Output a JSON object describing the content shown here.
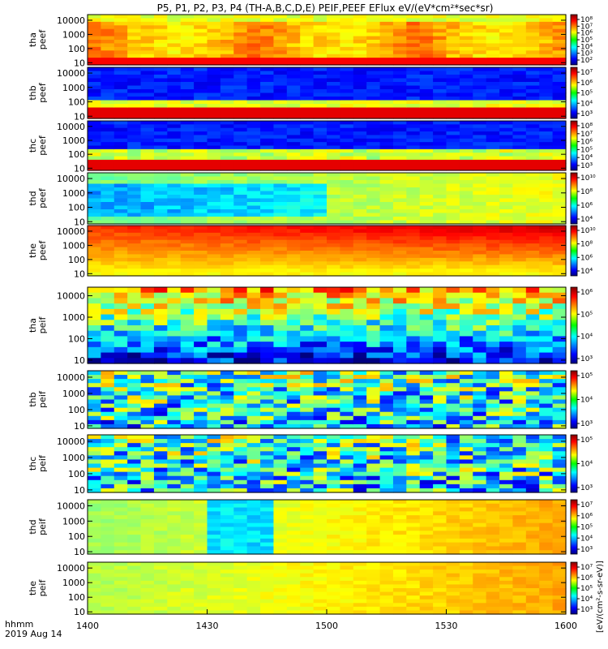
{
  "title": "P5, P1, P2, P3, P4 (TH-A,B,C,D,E) PEIF,PEEF EFlux eV/(eV*cm²*sec*sr)",
  "time_axis": {
    "label_line1": "hhmm",
    "label_line2": "2019 Aug 14",
    "ticks": [
      "1400",
      "1430",
      "1500",
      "1530",
      "1600"
    ],
    "range": [
      "1400",
      "1600"
    ]
  },
  "y_ticks": [
    "10000",
    "1000",
    "100",
    "10"
  ],
  "colorbar_unit": "[eV/(cm²-s-sr-eV)]",
  "chart_data": [
    {
      "type": "heatmap",
      "probe": "tha",
      "instrument": "peef",
      "ylabel_line1": "tha",
      "ylabel_line2": "peef",
      "ylim": [
        7,
        25000
      ],
      "yscale": "log",
      "yticks": [
        10,
        100,
        1000,
        10000
      ],
      "cbar_ticks": [
        "10⁸",
        "10⁷",
        "10⁶",
        "10⁵",
        "10⁴",
        "10³",
        "10²"
      ],
      "cbar_range": [
        100,
        100000000
      ],
      "pattern": "a"
    },
    {
      "type": "heatmap",
      "probe": "thb",
      "instrument": "peef",
      "ylabel_line1": "thb",
      "ylabel_line2": "peef",
      "ylim": [
        7,
        25000
      ],
      "yscale": "log",
      "yticks": [
        10,
        100,
        1000,
        10000
      ],
      "cbar_ticks": [
        "10⁷",
        "10⁶",
        "10⁵",
        "10⁴",
        "10³"
      ],
      "cbar_range": [
        1000,
        10000000
      ],
      "pattern": "b"
    },
    {
      "type": "heatmap",
      "probe": "thc",
      "instrument": "peef",
      "ylabel_line1": "thc",
      "ylabel_line2": "peef",
      "ylim": [
        7,
        25000
      ],
      "yscale": "log",
      "yticks": [
        10,
        100,
        1000,
        10000
      ],
      "cbar_ticks": [
        "10⁸",
        "10⁷",
        "10⁶",
        "10⁵",
        "10⁴",
        "10³"
      ],
      "cbar_range": [
        1000,
        100000000
      ],
      "pattern": "c"
    },
    {
      "type": "heatmap",
      "probe": "thd",
      "instrument": "peef",
      "ylabel_line1": "thd",
      "ylabel_line2": "peef",
      "ylim": [
        7,
        25000
      ],
      "yscale": "log",
      "yticks": [
        10,
        100,
        1000,
        10000
      ],
      "cbar_ticks": [
        "10¹⁰",
        "10⁸",
        "10⁶",
        "10⁴"
      ],
      "cbar_range": [
        10000,
        10000000000
      ],
      "pattern": "d"
    },
    {
      "type": "heatmap",
      "probe": "the",
      "instrument": "peef",
      "ylabel_line1": "the",
      "ylabel_line2": "peef",
      "ylim": [
        7,
        25000
      ],
      "yscale": "log",
      "yticks": [
        10,
        100,
        1000,
        10000
      ],
      "cbar_ticks": [
        "10¹⁰",
        "10⁸",
        "10⁶",
        "10⁴"
      ],
      "cbar_range": [
        10000,
        10000000000
      ],
      "pattern": "e"
    },
    {
      "type": "heatmap",
      "probe": "tha",
      "instrument": "peif",
      "ylabel_line1": "tha",
      "ylabel_line2": "peif",
      "ylim": [
        7,
        25000
      ],
      "yscale": "log",
      "yticks": [
        10,
        100,
        1000,
        10000
      ],
      "cbar_ticks": [
        "10⁶",
        "10⁵",
        "10⁴",
        "10³"
      ],
      "cbar_range": [
        1000,
        1000000
      ],
      "pattern": "f"
    },
    {
      "type": "heatmap",
      "probe": "thb",
      "instrument": "peif",
      "ylabel_line1": "thb",
      "ylabel_line2": "peif",
      "ylim": [
        7,
        25000
      ],
      "yscale": "log",
      "yticks": [
        10,
        100,
        1000,
        10000
      ],
      "cbar_ticks": [
        "10⁵",
        "10⁴",
        "10³"
      ],
      "cbar_range": [
        1000,
        100000
      ],
      "pattern": "g"
    },
    {
      "type": "heatmap",
      "probe": "thc",
      "instrument": "peif",
      "ylabel_line1": "thc",
      "ylabel_line2": "peif",
      "ylim": [
        7,
        25000
      ],
      "yscale": "log",
      "yticks": [
        10,
        100,
        1000,
        10000
      ],
      "cbar_ticks": [
        "10⁵",
        "10⁴",
        "10³"
      ],
      "cbar_range": [
        1000,
        100000
      ],
      "pattern": "h"
    },
    {
      "type": "heatmap",
      "probe": "thd",
      "instrument": "peif",
      "ylabel_line1": "thd",
      "ylabel_line2": "peif",
      "ylim": [
        7,
        25000
      ],
      "yscale": "log",
      "yticks": [
        10,
        100,
        1000,
        10000
      ],
      "cbar_ticks": [
        "10⁷",
        "10⁶",
        "10⁵",
        "10⁴",
        "10³"
      ],
      "cbar_range": [
        1000,
        10000000
      ],
      "pattern": "i"
    },
    {
      "type": "heatmap",
      "probe": "the",
      "instrument": "peif",
      "ylabel_line1": "the",
      "ylabel_line2": "peif",
      "ylim": [
        7,
        25000
      ],
      "yscale": "log",
      "yticks": [
        10,
        100,
        1000,
        10000
      ],
      "cbar_ticks": [
        "10⁷",
        "10⁶",
        "10⁵",
        "10⁴",
        "10³"
      ],
      "cbar_range": [
        1000,
        10000000
      ],
      "pattern": "j"
    }
  ]
}
